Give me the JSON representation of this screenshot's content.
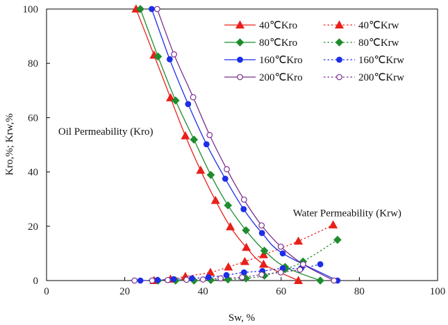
{
  "chart_data": {
    "type": "line",
    "xlabel": "Sw,  %",
    "ylabel": "Kro,%;  Krw,%",
    "xlim": [
      0,
      100
    ],
    "ylim": [
      0,
      100
    ],
    "xticks": [
      "0",
      "20",
      "40",
      "60",
      "80",
      "100"
    ],
    "yticks": [
      "0",
      "20",
      "40",
      "60",
      "80",
      "100"
    ],
    "legend_position": "top-right",
    "annotations": [
      {
        "text": "Oil Permeability (Kro)",
        "x": 3,
        "y": 55
      },
      {
        "text": "Water Permeability (Krw)",
        "x": 63,
        "y": 25
      }
    ],
    "series": [
      {
        "name": "40℃Kro",
        "color": "#e8201a",
        "marker": "triangle",
        "filled": true,
        "dashed": false,
        "x": [
          22.9,
          27.5,
          31.7,
          35.5,
          39.4,
          43.2,
          47.0,
          51.1,
          55.5,
          64.4
        ],
        "y": [
          100,
          83.0,
          67.3,
          53.3,
          40.6,
          29.5,
          19.8,
          12.2,
          6.0,
          0
        ]
      },
      {
        "name": "40℃Krw",
        "color": "#e8201a",
        "marker": "triangle",
        "filled": true,
        "dashed": true,
        "x": [
          27.5,
          31.7,
          35.5,
          41.9,
          46.5,
          50.7,
          55.5,
          64.4,
          73.3
        ],
        "y": [
          0,
          0.5,
          1.5,
          3.0,
          5.0,
          7.0,
          9.5,
          14.5,
          20.5
        ]
      },
      {
        "name": "80℃Kro",
        "color": "#1e8c2e",
        "marker": "diamond",
        "filled": true,
        "dashed": false,
        "x": [
          24.0,
          28.5,
          33.0,
          37.7,
          42.0,
          46.4,
          51.0,
          55.7,
          61.0,
          70.0
        ],
        "y": [
          100,
          82.5,
          66.3,
          51.9,
          38.9,
          27.7,
          18.5,
          11.0,
          5.0,
          0
        ]
      },
      {
        "name": "80℃Krw",
        "color": "#1e8c2e",
        "marker": "diamond",
        "filled": true,
        "dashed": true,
        "x": [
          28.5,
          33.0,
          37.7,
          42.0,
          46.4,
          51.0,
          55.7,
          61.0,
          65.6,
          74.4
        ],
        "y": [
          0,
          0,
          0,
          0.2,
          0.4,
          0.8,
          1.8,
          4.2,
          7.0,
          15.0
        ]
      },
      {
        "name": "160℃Kro",
        "color": "#1c2ee8",
        "marker": "circle",
        "filled": true,
        "dashed": false,
        "x": [
          26.9,
          31.5,
          36.2,
          40.9,
          45.7,
          50.4,
          55.1,
          60.4,
          74.4
        ],
        "y": [
          100,
          81.5,
          65.0,
          50.2,
          37.5,
          26.3,
          17.5,
          10.0,
          0
        ]
      },
      {
        "name": "160℃Krw",
        "color": "#1c2ee8",
        "marker": "circle",
        "filled": true,
        "dashed": true,
        "x": [
          24.0,
          28.4,
          32.5,
          37.2,
          41.4,
          46.0,
          50.5,
          55.2,
          60.4,
          65.1,
          70.0
        ],
        "y": [
          0,
          0.2,
          0.5,
          0.8,
          1.2,
          2.0,
          3.0,
          3.5,
          4.5,
          4.5,
          6.0
        ]
      },
      {
        "name": "200℃Kro",
        "color": "#7a2e8c",
        "marker": "circle",
        "filled": false,
        "dashed": false,
        "x": [
          28.3,
          32.6,
          37.5,
          41.7,
          46.1,
          50.5,
          55.0,
          59.9,
          65.6,
          73.5
        ],
        "y": [
          100,
          83.3,
          67.5,
          53.6,
          41.0,
          29.8,
          20.3,
          12.5,
          6.0,
          0
        ]
      },
      {
        "name": "200℃Krw",
        "color": "#7a2e8c",
        "marker": "circle",
        "filled": false,
        "dashed": true,
        "x": [
          22.5,
          27.0,
          31.0,
          35.8,
          40.0,
          44.5,
          50.0,
          55.0,
          59.9,
          64.8
        ],
        "y": [
          0,
          0,
          0.2,
          0.3,
          0.4,
          0.8,
          1.2,
          2.2,
          3.0,
          4.0
        ]
      }
    ]
  }
}
